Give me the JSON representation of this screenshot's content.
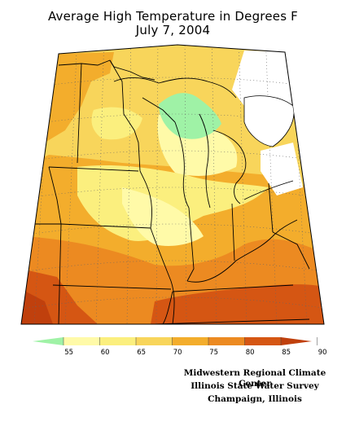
{
  "title": {
    "line1": "Average High Temperature in Degrees F",
    "line2": "July 7, 2004"
  },
  "legend": {
    "thresholds": [
      "55",
      "60",
      "65",
      "70",
      "75",
      "80",
      "85",
      "90"
    ],
    "colors": [
      "#9ff2a6",
      "#fffaa8",
      "#fbef7e",
      "#f8d55b",
      "#f3ad2c",
      "#ec8a21",
      "#d55613",
      "#c0400d"
    ]
  },
  "credits": {
    "line1": "Midwestern Regional Climate Center",
    "line2": "Illinois State Water Survey",
    "line3": "Champaign, Illinois"
  }
}
